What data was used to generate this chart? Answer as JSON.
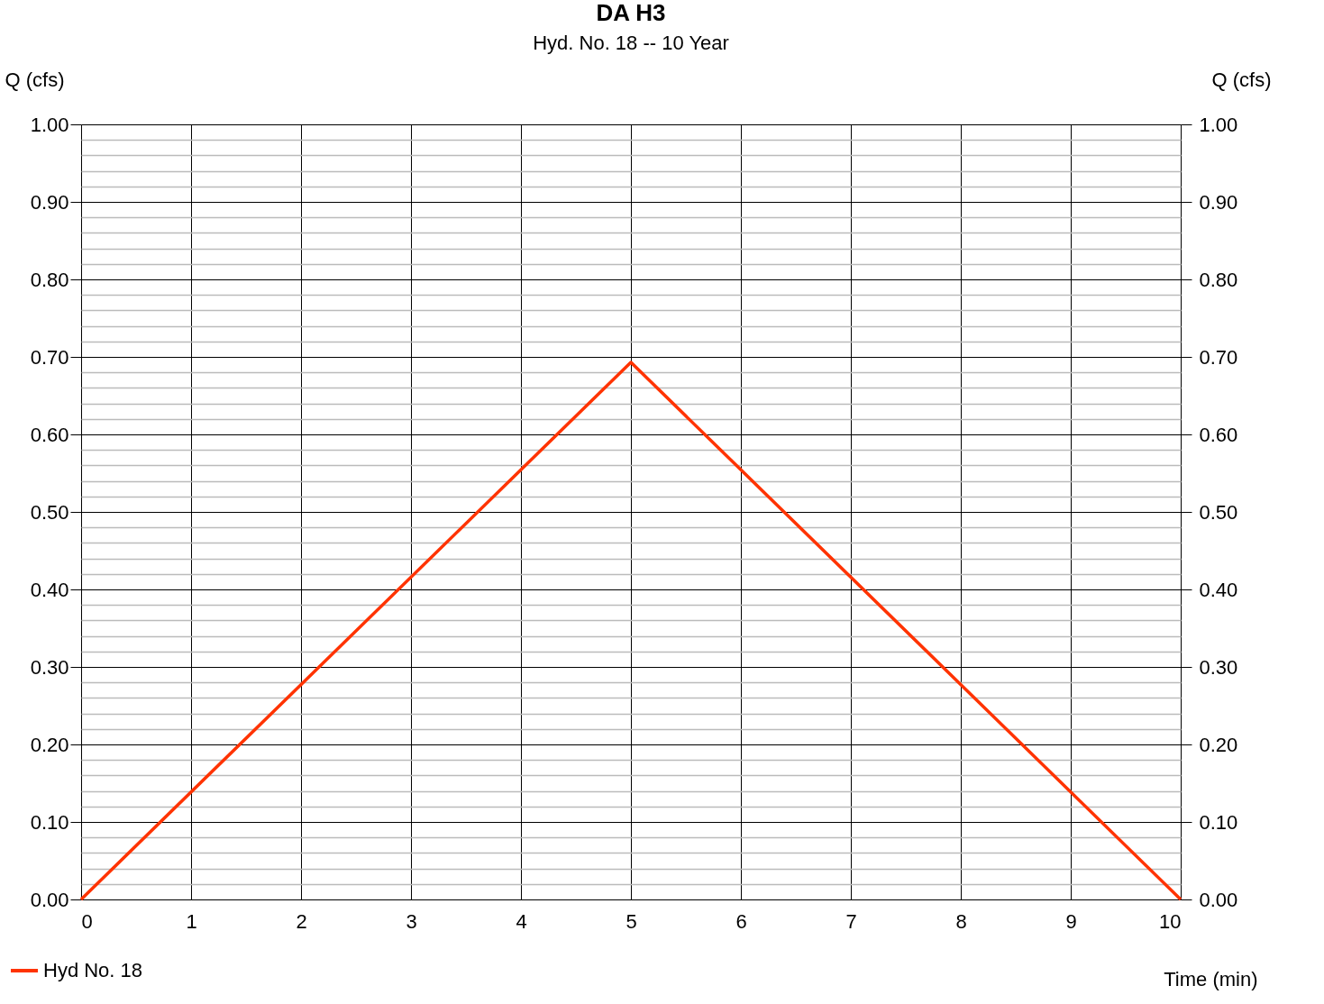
{
  "chart_data": {
    "type": "line",
    "title": "DA H3",
    "subtitle": "Hyd. No. 18 -- 10 Year",
    "xlabel": "Time (min)",
    "ylabel": "Q (cfs)",
    "y2label": "Q (cfs)",
    "series": [
      {
        "name": "Hyd No. 18",
        "color": "#ff3300",
        "x": [
          0,
          5,
          10
        ],
        "values": [
          0,
          0.693,
          0
        ]
      }
    ],
    "xlim": [
      0,
      10
    ],
    "xticks": [
      0,
      1,
      2,
      3,
      4,
      5,
      6,
      7,
      8,
      9,
      10
    ],
    "ylim": [
      0,
      1
    ],
    "y2lim": [
      0,
      1
    ],
    "yticks": [
      {
        "value": 0,
        "label": "0.00"
      },
      {
        "value": 0.02,
        "label": null
      },
      {
        "value": 0.04,
        "label": null
      },
      {
        "value": 0.06,
        "label": null
      },
      {
        "value": 0.08,
        "label": null
      },
      {
        "value": 0.1,
        "label": "0.10"
      },
      {
        "value": 0.12,
        "label": null
      },
      {
        "value": 0.14,
        "label": null
      },
      {
        "value": 0.16,
        "label": null
      },
      {
        "value": 0.18,
        "label": null
      },
      {
        "value": 0.2,
        "label": "0.20"
      },
      {
        "value": 0.22,
        "label": null
      },
      {
        "value": 0.24,
        "label": null
      },
      {
        "value": 0.26,
        "label": null
      },
      {
        "value": 0.28,
        "label": null
      },
      {
        "value": 0.3,
        "label": "0.30"
      },
      {
        "value": 0.32,
        "label": null
      },
      {
        "value": 0.34,
        "label": null
      },
      {
        "value": 0.36,
        "label": null
      },
      {
        "value": 0.38,
        "label": null
      },
      {
        "value": 0.4,
        "label": "0.40"
      },
      {
        "value": 0.42,
        "label": null
      },
      {
        "value": 0.44,
        "label": null
      },
      {
        "value": 0.46,
        "label": null
      },
      {
        "value": 0.48,
        "label": null
      },
      {
        "value": 0.5,
        "label": "0.50"
      },
      {
        "value": 0.52,
        "label": null
      },
      {
        "value": 0.54,
        "label": null
      },
      {
        "value": 0.56,
        "label": null
      },
      {
        "value": 0.58,
        "label": null
      },
      {
        "value": 0.6,
        "label": "0.60"
      },
      {
        "value": 0.62,
        "label": null
      },
      {
        "value": 0.64,
        "label": null
      },
      {
        "value": 0.66,
        "label": null
      },
      {
        "value": 0.68,
        "label": null
      },
      {
        "value": 0.7,
        "label": "0.70"
      },
      {
        "value": 0.72,
        "label": null
      },
      {
        "value": 0.74,
        "label": null
      },
      {
        "value": 0.76,
        "label": null
      },
      {
        "value": 0.78,
        "label": null
      },
      {
        "value": 0.8,
        "label": "0.80"
      },
      {
        "value": 0.82,
        "label": null
      },
      {
        "value": 0.84,
        "label": null
      },
      {
        "value": 0.86,
        "label": null
      },
      {
        "value": 0.88,
        "label": null
      },
      {
        "value": 0.9,
        "label": "0.90"
      },
      {
        "value": 0.92,
        "label": null
      },
      {
        "value": 0.94,
        "label": null
      },
      {
        "value": 0.96,
        "label": null
      },
      {
        "value": 0.98,
        "label": null
      },
      {
        "value": 1,
        "label": "1.00"
      }
    ],
    "y2ticks": [
      {
        "value": 0,
        "label": "0.00"
      },
      {
        "value": 0.1,
        "label": "0.10"
      },
      {
        "value": 0.2,
        "label": "0.20"
      },
      {
        "value": 0.3,
        "label": "0.30"
      },
      {
        "value": 0.4,
        "label": "0.40"
      },
      {
        "value": 0.5,
        "label": "0.50"
      },
      {
        "value": 0.6,
        "label": "0.60"
      },
      {
        "value": 0.7,
        "label": "0.70"
      },
      {
        "value": 0.8,
        "label": "0.80"
      },
      {
        "value": 0.9,
        "label": "0.90"
      },
      {
        "value": 1,
        "label": "1.00"
      }
    ],
    "grid": true,
    "legend": "bottom left",
    "marker": "none",
    "line_style": "solid"
  }
}
